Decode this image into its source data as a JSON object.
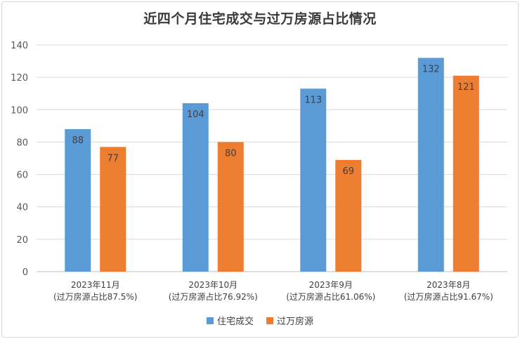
{
  "chart_data": {
    "type": "bar",
    "title": "近四个月住宅成交与过万房源占比情况",
    "categories": [
      "2023年11月",
      "2023年10月",
      "2023年9月",
      "2023年8月"
    ],
    "category_notes": [
      "(过万房源占比87.5%)",
      "(过万房源占比76.92%)",
      "(过万房源占比61.06%)",
      "(过万房源占比91.67%)"
    ],
    "series": [
      {
        "name": "住宅成交",
        "values": [
          88,
          104,
          113,
          132
        ],
        "color": "#5b9bd5"
      },
      {
        "name": "过万房源",
        "values": [
          77,
          80,
          69,
          121
        ],
        "color": "#ed7d31"
      }
    ],
    "ylim": [
      0,
      140
    ],
    "yticks": [
      0,
      20,
      40,
      60,
      80,
      100,
      120,
      140
    ],
    "grid": true,
    "legend_position": "bottom"
  }
}
